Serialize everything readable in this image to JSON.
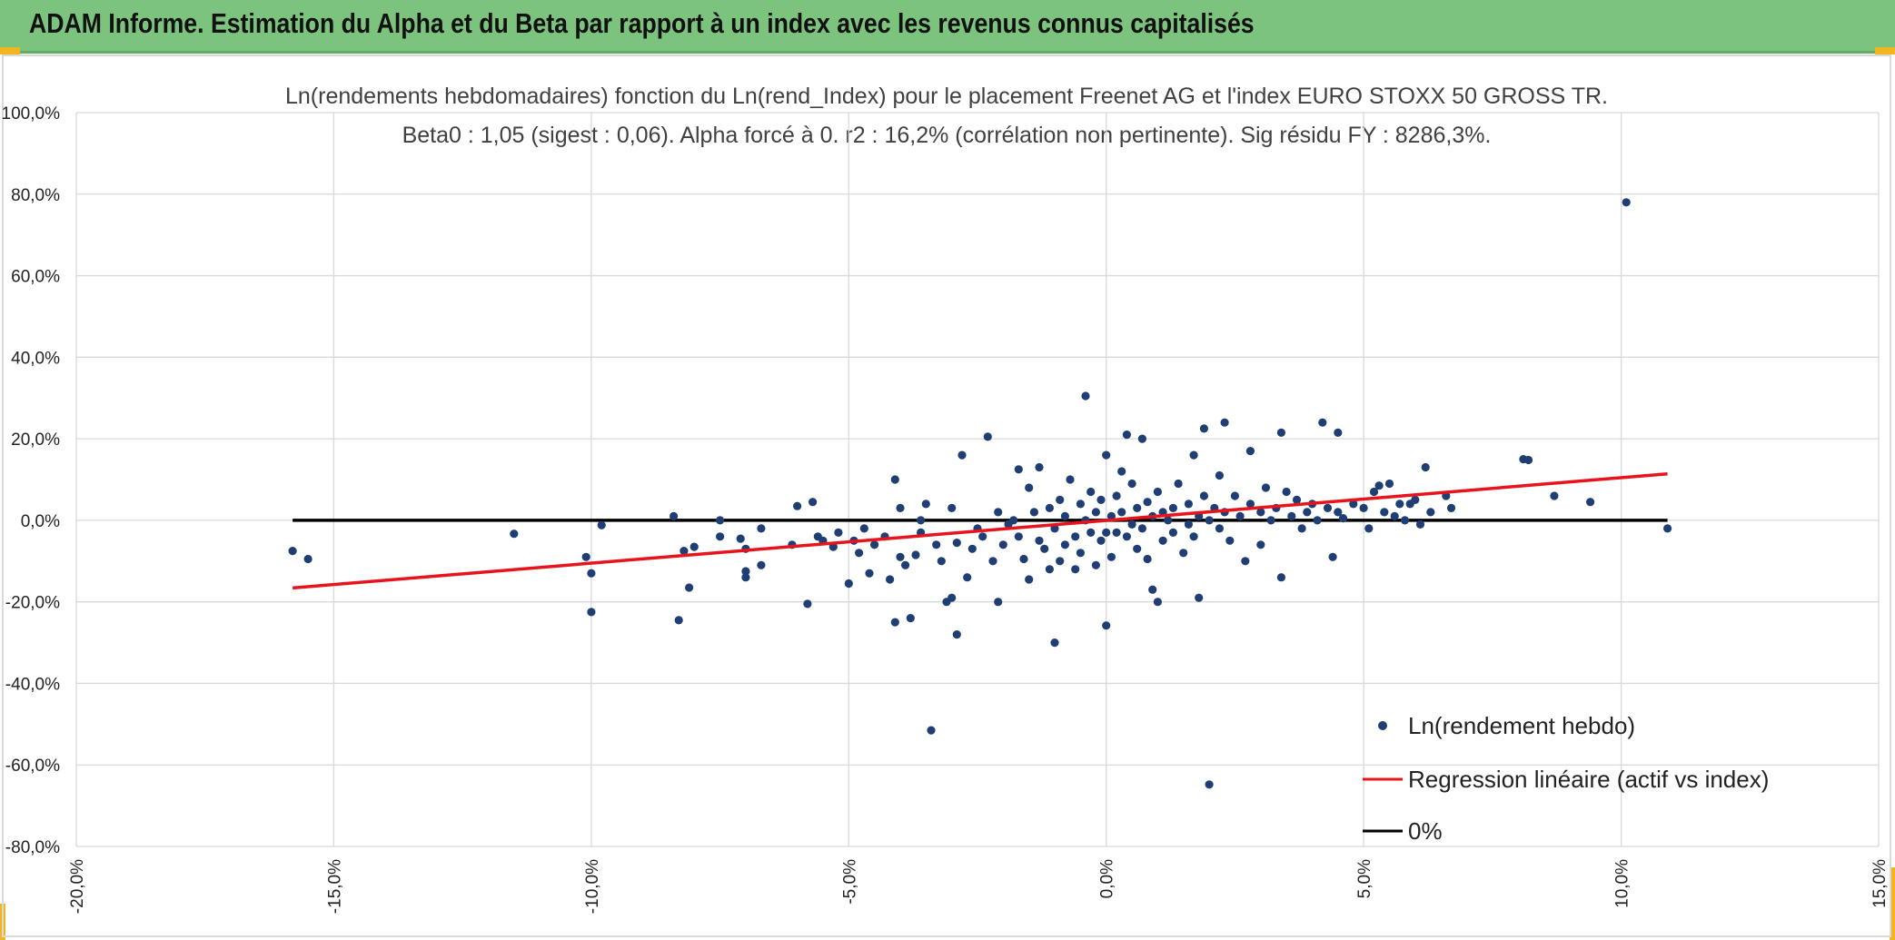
{
  "header": {
    "title": "ADAM Informe. Estimation du Alpha et du Beta par rapport à un index avec les revenus connus capitalisés"
  },
  "colors": {
    "header_bg": "#7cc47e",
    "accent_corner": "#f2b522",
    "points": "#1f3f74",
    "regression": "#e8141c",
    "zero_line": "#000000",
    "grid": "#d9d9d9"
  },
  "chart_data": {
    "type": "scatter",
    "title": "Ln(rendements hebdomadaires) fonction du Ln(rend_Index) pour le placement Freenet AG et l'index EURO STOXX 50 GROSS TR.",
    "subtitle": "Beta0 : 1,05 (sigest : 0,06). Alpha forcé à 0. r2 : 16,2% (corrélation non pertinente). Sig résidu FY : 8286,3%.",
    "xlim": [
      -0.2,
      0.15
    ],
    "ylim": [
      -0.8,
      1.0
    ],
    "x_ticks": [
      "-20,0%",
      "-15,0%",
      "-10,0%",
      "-5,0%",
      "0,0%",
      "5,0%",
      "10,0%",
      "15,0%"
    ],
    "y_ticks": [
      "100,0%",
      "80,0%",
      "60,0%",
      "40,0%",
      "20,0%",
      "0,0%",
      "-20,0%",
      "-40,0%",
      "-60,0%",
      "-80,0%"
    ],
    "grid": true,
    "legend_position": "bottom-right",
    "legend": [
      "Ln(rendement hebdo)",
      "Regression linéaire (actif vs index)",
      "0%"
    ],
    "series": [
      {
        "name": "Ln(rendement hebdo)",
        "kind": "points",
        "points": [
          [
            -0.158,
            -0.075
          ],
          [
            -0.155,
            -0.095
          ],
          [
            -0.115,
            -0.033
          ],
          [
            -0.101,
            -0.09
          ],
          [
            -0.1,
            -0.225
          ],
          [
            -0.1,
            -0.13
          ],
          [
            -0.098,
            -0.012
          ],
          [
            -0.084,
            0.01
          ],
          [
            -0.083,
            -0.245
          ],
          [
            -0.082,
            -0.075
          ],
          [
            -0.081,
            -0.165
          ],
          [
            -0.08,
            -0.065
          ],
          [
            -0.075,
            0.0
          ],
          [
            -0.075,
            -0.04
          ],
          [
            -0.071,
            -0.045
          ],
          [
            -0.07,
            -0.125
          ],
          [
            -0.07,
            -0.14
          ],
          [
            -0.07,
            -0.07
          ],
          [
            -0.067,
            -0.11
          ],
          [
            -0.067,
            -0.02
          ],
          [
            -0.061,
            -0.06
          ],
          [
            -0.06,
            0.035
          ],
          [
            -0.058,
            -0.205
          ],
          [
            -0.057,
            0.045
          ],
          [
            -0.056,
            -0.04
          ],
          [
            -0.055,
            -0.05
          ],
          [
            -0.053,
            -0.065
          ],
          [
            -0.052,
            -0.03
          ],
          [
            -0.05,
            -0.155
          ],
          [
            -0.049,
            -0.05
          ],
          [
            -0.048,
            -0.08
          ],
          [
            -0.047,
            -0.02
          ],
          [
            -0.046,
            -0.13
          ],
          [
            -0.045,
            -0.06
          ],
          [
            -0.043,
            -0.04
          ],
          [
            -0.042,
            -0.145
          ],
          [
            -0.041,
            -0.25
          ],
          [
            -0.041,
            0.1
          ],
          [
            -0.04,
            0.03
          ],
          [
            -0.04,
            -0.09
          ],
          [
            -0.039,
            -0.11
          ],
          [
            -0.038,
            -0.24
          ],
          [
            -0.037,
            -0.085
          ],
          [
            -0.036,
            0.0
          ],
          [
            -0.036,
            -0.03
          ],
          [
            -0.035,
            0.04
          ],
          [
            -0.034,
            -0.515
          ],
          [
            -0.033,
            -0.06
          ],
          [
            -0.032,
            -0.1
          ],
          [
            -0.031,
            -0.2
          ],
          [
            -0.03,
            -0.19
          ],
          [
            -0.03,
            0.03
          ],
          [
            -0.029,
            -0.055
          ],
          [
            -0.029,
            -0.28
          ],
          [
            -0.028,
            0.16
          ],
          [
            -0.027,
            -0.14
          ],
          [
            -0.026,
            -0.07
          ],
          [
            -0.025,
            -0.02
          ],
          [
            -0.024,
            -0.04
          ],
          [
            -0.023,
            0.205
          ],
          [
            -0.022,
            -0.1
          ],
          [
            -0.021,
            -0.2
          ],
          [
            -0.021,
            0.02
          ],
          [
            -0.02,
            -0.06
          ],
          [
            -0.019,
            -0.01
          ],
          [
            -0.018,
            0.0
          ],
          [
            -0.017,
            0.125
          ],
          [
            -0.017,
            -0.04
          ],
          [
            -0.016,
            -0.095
          ],
          [
            -0.015,
            -0.145
          ],
          [
            -0.015,
            0.08
          ],
          [
            -0.014,
            0.02
          ],
          [
            -0.013,
            -0.05
          ],
          [
            -0.013,
            0.13
          ],
          [
            -0.012,
            -0.07
          ],
          [
            -0.011,
            -0.12
          ],
          [
            -0.011,
            0.03
          ],
          [
            -0.01,
            -0.02
          ],
          [
            -0.01,
            -0.3
          ],
          [
            -0.009,
            0.05
          ],
          [
            -0.009,
            -0.1
          ],
          [
            -0.008,
            0.01
          ],
          [
            -0.008,
            -0.06
          ],
          [
            -0.007,
            0.1
          ],
          [
            -0.006,
            -0.04
          ],
          [
            -0.006,
            -0.12
          ],
          [
            -0.005,
            0.04
          ],
          [
            -0.005,
            -0.08
          ],
          [
            -0.004,
            0.305
          ],
          [
            -0.004,
            0.0
          ],
          [
            -0.003,
            -0.03
          ],
          [
            -0.003,
            0.07
          ],
          [
            -0.002,
            0.02
          ],
          [
            -0.002,
            -0.11
          ],
          [
            -0.001,
            0.05
          ],
          [
            -0.001,
            -0.05
          ],
          [
            0.0,
            0.16
          ],
          [
            0.0,
            -0.03
          ],
          [
            0.0,
            -0.258
          ],
          [
            0.001,
            0.01
          ],
          [
            0.001,
            -0.09
          ],
          [
            0.002,
            0.06
          ],
          [
            0.002,
            -0.03
          ],
          [
            0.003,
            0.02
          ],
          [
            0.003,
            0.12
          ],
          [
            0.004,
            -0.04
          ],
          [
            0.004,
            0.21
          ],
          [
            0.005,
            -0.01
          ],
          [
            0.005,
            0.09
          ],
          [
            0.006,
            -0.07
          ],
          [
            0.006,
            0.03
          ],
          [
            0.007,
            0.2
          ],
          [
            0.007,
            -0.02
          ],
          [
            0.008,
            0.045
          ],
          [
            0.008,
            -0.095
          ],
          [
            0.009,
            0.01
          ],
          [
            0.009,
            -0.17
          ],
          [
            0.01,
            -0.2
          ],
          [
            0.01,
            0.07
          ],
          [
            0.011,
            0.02
          ],
          [
            0.011,
            -0.05
          ],
          [
            0.012,
            0.0
          ],
          [
            0.013,
            0.03
          ],
          [
            0.013,
            -0.03
          ],
          [
            0.014,
            0.09
          ],
          [
            0.015,
            -0.08
          ],
          [
            0.016,
            0.04
          ],
          [
            0.016,
            -0.01
          ],
          [
            0.017,
            0.16
          ],
          [
            0.017,
            -0.04
          ],
          [
            0.018,
            0.01
          ],
          [
            0.018,
            -0.19
          ],
          [
            0.019,
            0.06
          ],
          [
            0.019,
            0.225
          ],
          [
            0.02,
            0.0
          ],
          [
            0.02,
            -0.648
          ],
          [
            0.021,
            0.03
          ],
          [
            0.022,
            0.11
          ],
          [
            0.022,
            -0.02
          ],
          [
            0.023,
            0.02
          ],
          [
            0.023,
            0.24
          ],
          [
            0.024,
            -0.05
          ],
          [
            0.025,
            0.06
          ],
          [
            0.026,
            0.01
          ],
          [
            0.027,
            -0.1
          ],
          [
            0.028,
            0.17
          ],
          [
            0.028,
            0.04
          ],
          [
            0.03,
            0.02
          ],
          [
            0.03,
            -0.06
          ],
          [
            0.031,
            0.08
          ],
          [
            0.032,
            0.0
          ],
          [
            0.033,
            0.03
          ],
          [
            0.034,
            0.215
          ],
          [
            0.034,
            -0.14
          ],
          [
            0.035,
            0.07
          ],
          [
            0.036,
            0.01
          ],
          [
            0.037,
            0.05
          ],
          [
            0.038,
            -0.02
          ],
          [
            0.039,
            0.02
          ],
          [
            0.04,
            0.04
          ],
          [
            0.041,
            0.0
          ],
          [
            0.042,
            0.24
          ],
          [
            0.043,
            0.03
          ],
          [
            0.044,
            -0.09
          ],
          [
            0.045,
            0.02
          ],
          [
            0.045,
            0.215
          ],
          [
            0.046,
            0.005
          ],
          [
            0.048,
            0.04
          ],
          [
            0.05,
            0.03
          ],
          [
            0.051,
            -0.02
          ],
          [
            0.052,
            0.07
          ],
          [
            0.053,
            0.085
          ],
          [
            0.054,
            0.02
          ],
          [
            0.055,
            0.09
          ],
          [
            0.056,
            0.01
          ],
          [
            0.057,
            0.04
          ],
          [
            0.058,
            0.0
          ],
          [
            0.059,
            0.04
          ],
          [
            0.06,
            0.05
          ],
          [
            0.061,
            -0.01
          ],
          [
            0.062,
            0.13
          ],
          [
            0.063,
            0.02
          ],
          [
            0.066,
            0.06
          ],
          [
            0.067,
            0.03
          ],
          [
            0.081,
            0.15
          ],
          [
            0.082,
            0.148
          ],
          [
            0.087,
            0.06
          ],
          [
            0.094,
            0.045
          ],
          [
            0.101,
            0.78
          ],
          [
            0.109,
            -0.02
          ]
        ],
        "cluster_note": ""
      },
      {
        "name": "Regression linéaire (actif vs index)",
        "kind": "line",
        "x": [
          -0.158,
          0.109
        ],
        "y": [
          -0.166,
          0.114
        ]
      },
      {
        "name": "0%",
        "kind": "line",
        "x": [
          -0.158,
          0.109
        ],
        "y": [
          0.0,
          0.0
        ]
      }
    ]
  }
}
